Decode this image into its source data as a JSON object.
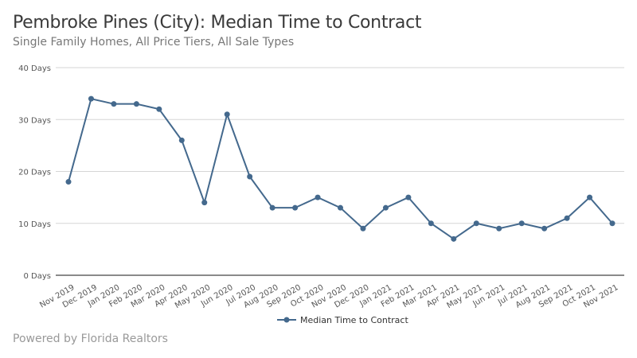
{
  "title": "Pembroke Pines (City): Median Time to Contract",
  "subtitle": "Single Family Homes, All Price Tiers, All Sale Types",
  "footer": "Powered by Florida Realtors",
  "chart_data": {
    "type": "line",
    "title": "Pembroke Pines (City): Median Time to Contract",
    "subtitle": "Single Family Homes, All Price Tiers, All Sale Types",
    "categories": [
      "Nov 2019",
      "Dec 2019",
      "Jan 2020",
      "Feb 2020",
      "Mar 2020",
      "Apr 2020",
      "May 2020",
      "Jun 2020",
      "Jul 2020",
      "Aug 2020",
      "Sep 2020",
      "Oct 2020",
      "Nov 2020",
      "Dec 2020",
      "Jan 2021",
      "Feb 2021",
      "Mar 2021",
      "Apr 2021",
      "May 2021",
      "Jun 2021",
      "Jul 2021",
      "Aug 2021",
      "Sep 2021",
      "Oct 2021",
      "Nov 2021"
    ],
    "series": [
      {
        "name": "Median Time to Contract",
        "values": [
          18,
          34,
          33,
          33,
          32,
          26,
          14,
          31,
          19,
          13,
          13,
          15,
          13,
          9,
          13,
          15,
          10,
          7,
          10,
          9,
          10,
          9,
          11,
          15,
          10
        ],
        "color": "#44698d"
      }
    ],
    "ylim": [
      0,
      40
    ],
    "yticks": [
      0,
      10,
      20,
      30,
      40
    ],
    "ytick_labels": [
      "0 Days",
      "10 Days",
      "20 Days",
      "30 Days",
      "40 Days"
    ],
    "grid": true,
    "legend": "bottom-center"
  }
}
